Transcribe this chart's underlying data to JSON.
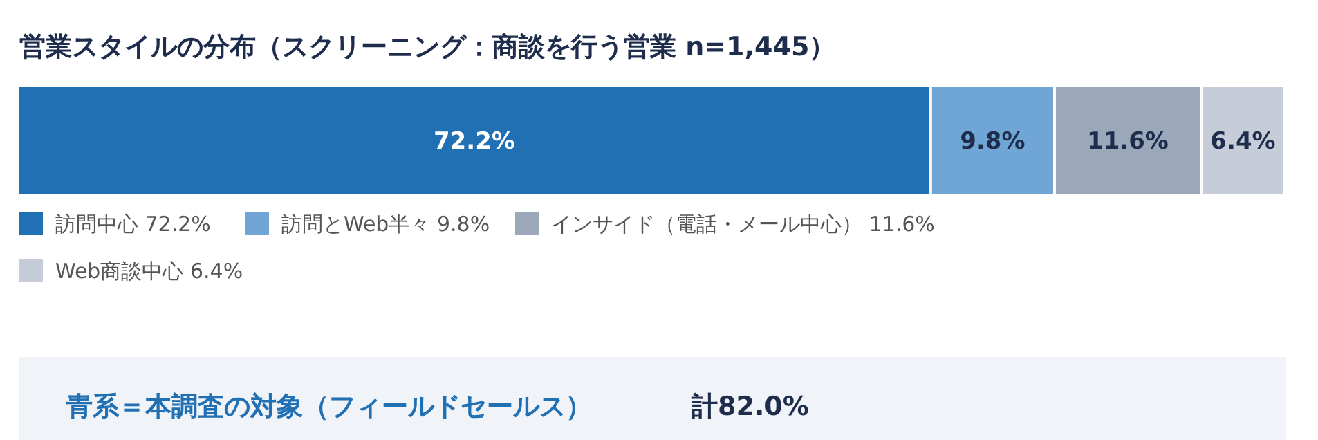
{
  "chart_data": {
    "type": "bar",
    "orientation": "horizontal",
    "stacked": true,
    "title": "営業スタイルの分布（スクリーニング：商談を行う営業 n=1,445）",
    "categories": [
      null
    ],
    "xlim": [
      0,
      100
    ],
    "legend": "bottom",
    "series": [
      {
        "name": "訪問中心 72.2%",
        "color": "#2170b3",
        "values": [
          72.2
        ],
        "value_labels": [
          "72.2%"
        ]
      },
      {
        "name": "訪問とWeb半々 9.8%",
        "color": "#6fa6d6",
        "values": [
          9.8
        ],
        "value_labels": [
          "9.8%"
        ]
      },
      {
        "name": "インサイド（電話・メール中心） 11.6%",
        "color": "#9aa8ba",
        "values": [
          11.6
        ],
        "value_labels": [
          "11.6%"
        ]
      },
      {
        "name": "Web商談中心 6.4%",
        "color": "#c6ccd8",
        "values": [
          6.4
        ],
        "value_labels": [
          "6.4%"
        ]
      }
    ],
    "annotations": [
      "青系＝本調査の対象（フィールドセールス）",
      "計82.0%"
    ]
  }
}
